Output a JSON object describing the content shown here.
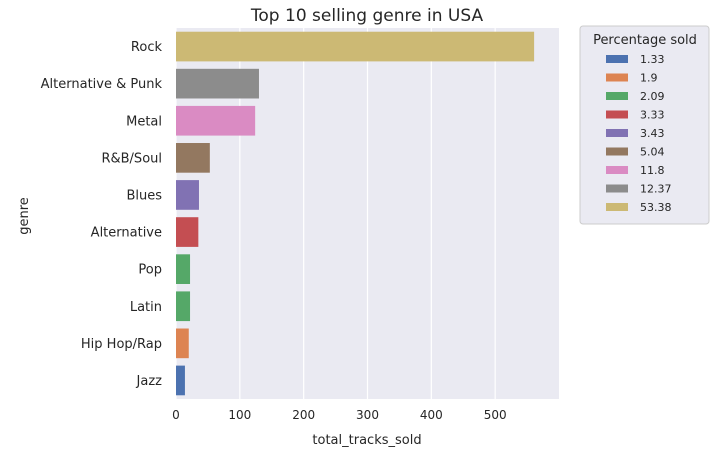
{
  "chart_data": {
    "type": "bar",
    "orientation": "horizontal",
    "title": "Top 10 selling genre in USA",
    "xlabel": "total_tracks_sold",
    "ylabel": "genre",
    "xlim": [
      0,
      600
    ],
    "xticks": [
      0,
      100,
      200,
      300,
      400,
      500
    ],
    "grid": true,
    "legend": {
      "title": "Percentage sold",
      "placement": "outside-right",
      "entries": [
        {
          "label": "1.33",
          "color": "#4c72b0"
        },
        {
          "label": "1.9",
          "color": "#dd8452"
        },
        {
          "label": "2.09",
          "color": "#55a868"
        },
        {
          "label": "3.33",
          "color": "#c44e52"
        },
        {
          "label": "3.43",
          "color": "#8172b3"
        },
        {
          "label": "5.04",
          "color": "#937860"
        },
        {
          "label": "11.8",
          "color": "#da8bc3"
        },
        {
          "label": "12.37",
          "color": "#8c8c8c"
        },
        {
          "label": "53.38",
          "color": "#ccb974"
        }
      ]
    },
    "categories": [
      "Rock",
      "Alternative & Punk",
      "Metal",
      "R&B/Soul",
      "Blues",
      "Alternative",
      "Pop",
      "Latin",
      "Hip Hop/Rap",
      "Jazz"
    ],
    "values": [
      561,
      130,
      124,
      53,
      36,
      35,
      22,
      22,
      20,
      14
    ],
    "hue": [
      "53.38",
      "12.37",
      "11.8",
      "5.04",
      "3.43",
      "3.33",
      "2.09",
      "2.09",
      "1.9",
      "1.33"
    ],
    "colors": [
      "#ccb974",
      "#8c8c8c",
      "#da8bc3",
      "#937860",
      "#8172b3",
      "#c44e52",
      "#55a868",
      "#55a868",
      "#dd8452",
      "#4c72b0"
    ],
    "background_color": "#eaeaf2",
    "grid_color": "#ffffff"
  }
}
